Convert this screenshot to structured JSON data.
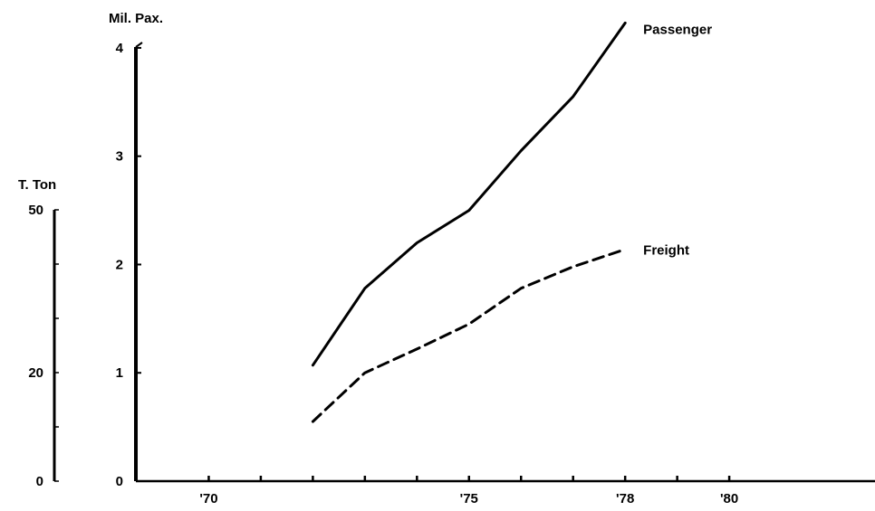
{
  "chart_data": {
    "type": "line",
    "title": "",
    "xlabel": "",
    "ylabel": "Mil. Pax.",
    "ylabel_secondary": "T. Ton",
    "xlim": [
      1968.6,
      1982.8
    ],
    "ylim": [
      0,
      4.3
    ],
    "ylim_secondary": [
      0,
      50
    ],
    "x_ticks": [
      1970,
      1971,
      1972,
      1973,
      1974,
      1975,
      1976,
      1977,
      1978,
      1979,
      1980
    ],
    "x_tick_labels": [
      {
        "x": 1970,
        "label": "'70"
      },
      {
        "x": 1975,
        "label": "'75"
      },
      {
        "x": 1978,
        "label": "'78"
      },
      {
        "x": 1980,
        "label": "'80"
      }
    ],
    "y_ticks": [
      {
        "value": 0,
        "label": "0"
      },
      {
        "value": 1,
        "label": "1"
      },
      {
        "value": 2,
        "label": "2"
      },
      {
        "value": 3,
        "label": "3"
      },
      {
        "value": 4,
        "label": "4"
      }
    ],
    "y_ticks_secondary": [
      {
        "value": 0,
        "label": "0"
      },
      {
        "value": 20,
        "label": "20"
      },
      {
        "value": 50,
        "label": "50"
      }
    ],
    "grid": false,
    "series": [
      {
        "name": "Passenger",
        "style": "solid",
        "axis": "primary",
        "x": [
          1972,
          1973,
          1974,
          1975,
          1976,
          1977,
          1978
        ],
        "values": [
          1.07,
          1.78,
          2.2,
          2.5,
          3.05,
          3.55,
          4.23
        ]
      },
      {
        "name": "Freight",
        "style": "dashed",
        "axis": "primary",
        "x": [
          1972,
          1973,
          1974,
          1975,
          1976,
          1977,
          1978
        ],
        "values": [
          0.55,
          1.0,
          1.22,
          1.45,
          1.78,
          1.98,
          2.14
        ]
      }
    ]
  }
}
